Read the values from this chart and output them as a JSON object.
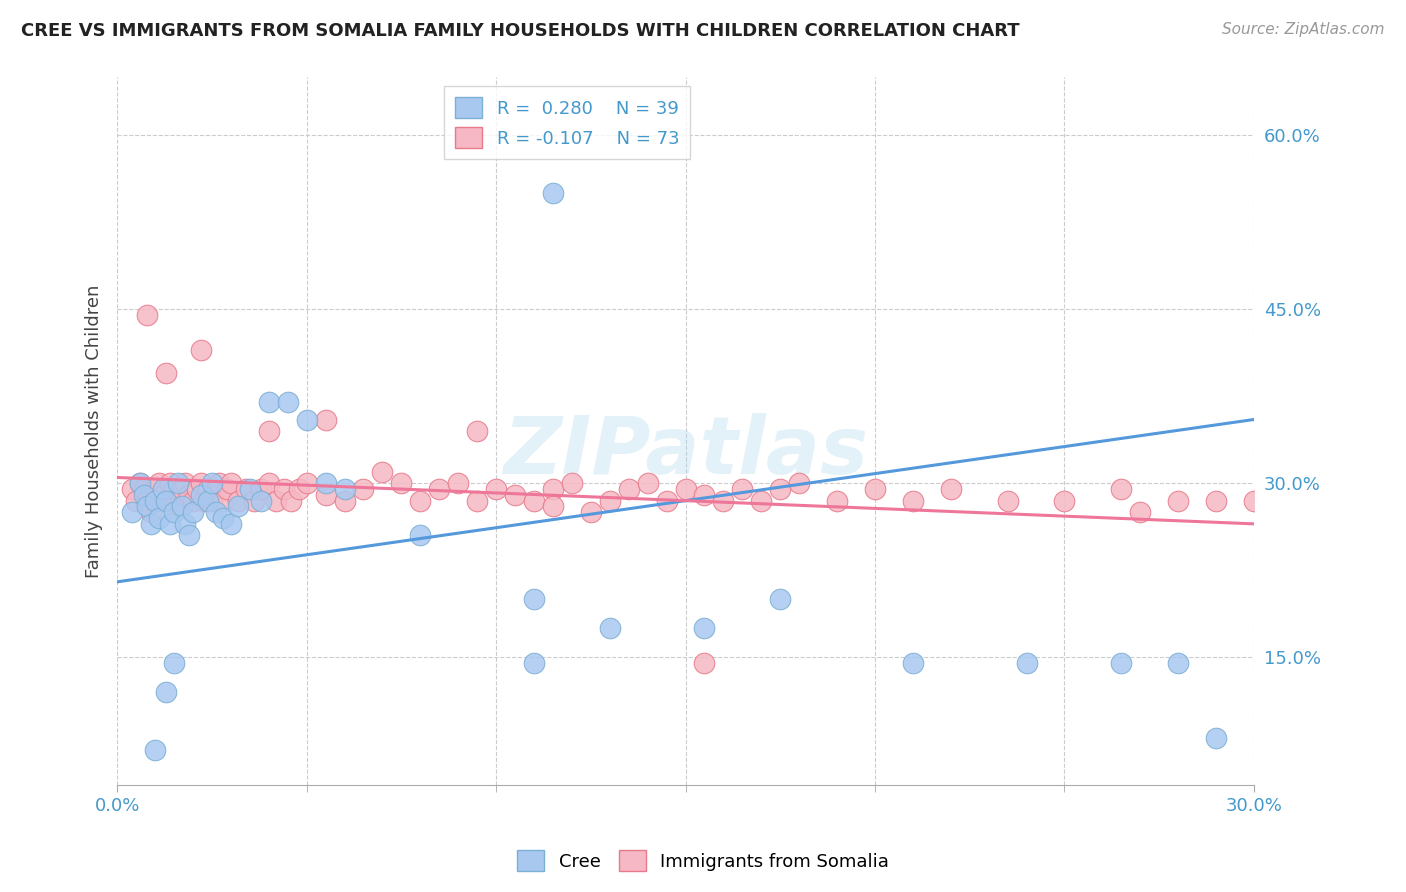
{
  "title": "CREE VS IMMIGRANTS FROM SOMALIA FAMILY HOUSEHOLDS WITH CHILDREN CORRELATION CHART",
  "source": "Source: ZipAtlas.com",
  "ylabel_label": "Family Households with Children",
  "x_min": 0.0,
  "x_max": 0.3,
  "y_min": 0.04,
  "y_max": 0.65,
  "y_ticks": [
    0.15,
    0.3,
    0.45,
    0.6
  ],
  "y_tick_labels": [
    "15.0%",
    "30.0%",
    "45.0%",
    "60.0%"
  ],
  "cree_color": "#a8c8f0",
  "cree_edge_color": "#7bafd4",
  "somalia_color": "#f5b8c4",
  "somalia_edge_color": "#e87a8a",
  "cree_line_color": "#5599dd",
  "somalia_line_color": "#ee7799",
  "legend_r1": "R =  0.280",
  "legend_n1": "N = 39",
  "legend_r2": "R = -0.107",
  "legend_n2": "N = 73",
  "watermark": "ZIPatlas",
  "cree_x": [
    0.004,
    0.006,
    0.007,
    0.008,
    0.009,
    0.01,
    0.011,
    0.012,
    0.013,
    0.014,
    0.015,
    0.016,
    0.017,
    0.018,
    0.019,
    0.02,
    0.022,
    0.024,
    0.025,
    0.026,
    0.028,
    0.03,
    0.032,
    0.035,
    0.038,
    0.04,
    0.045,
    0.05,
    0.055,
    0.06,
    0.08,
    0.11,
    0.13,
    0.155,
    0.175,
    0.21,
    0.24,
    0.265,
    0.29
  ],
  "cree_y": [
    0.275,
    0.3,
    0.29,
    0.28,
    0.265,
    0.285,
    0.27,
    0.295,
    0.285,
    0.265,
    0.275,
    0.3,
    0.28,
    0.265,
    0.255,
    0.275,
    0.29,
    0.285,
    0.3,
    0.275,
    0.27,
    0.265,
    0.28,
    0.295,
    0.285,
    0.37,
    0.37,
    0.355,
    0.3,
    0.295,
    0.255,
    0.2,
    0.175,
    0.175,
    0.2,
    0.145,
    0.145,
    0.145,
    0.08
  ],
  "somalia_x": [
    0.004,
    0.005,
    0.006,
    0.007,
    0.008,
    0.009,
    0.01,
    0.011,
    0.012,
    0.013,
    0.014,
    0.015,
    0.016,
    0.017,
    0.018,
    0.019,
    0.02,
    0.021,
    0.022,
    0.023,
    0.024,
    0.025,
    0.026,
    0.027,
    0.028,
    0.029,
    0.03,
    0.032,
    0.034,
    0.036,
    0.038,
    0.04,
    0.042,
    0.044,
    0.046,
    0.048,
    0.05,
    0.055,
    0.06,
    0.065,
    0.07,
    0.075,
    0.08,
    0.085,
    0.09,
    0.095,
    0.1,
    0.105,
    0.11,
    0.115,
    0.12,
    0.13,
    0.135,
    0.14,
    0.145,
    0.15,
    0.155,
    0.16,
    0.165,
    0.17,
    0.175,
    0.18,
    0.19,
    0.2,
    0.21,
    0.22,
    0.235,
    0.25,
    0.265,
    0.28,
    0.29,
    0.3,
    0.31
  ],
  "somalia_y": [
    0.295,
    0.285,
    0.3,
    0.295,
    0.285,
    0.275,
    0.295,
    0.3,
    0.29,
    0.285,
    0.3,
    0.295,
    0.28,
    0.295,
    0.3,
    0.29,
    0.285,
    0.295,
    0.3,
    0.285,
    0.295,
    0.285,
    0.295,
    0.3,
    0.285,
    0.295,
    0.3,
    0.285,
    0.295,
    0.285,
    0.295,
    0.3,
    0.285,
    0.295,
    0.285,
    0.295,
    0.3,
    0.29,
    0.285,
    0.295,
    0.31,
    0.3,
    0.285,
    0.295,
    0.3,
    0.285,
    0.295,
    0.29,
    0.285,
    0.295,
    0.3,
    0.285,
    0.295,
    0.3,
    0.285,
    0.295,
    0.29,
    0.285,
    0.295,
    0.285,
    0.295,
    0.3,
    0.285,
    0.295,
    0.285,
    0.295,
    0.285,
    0.285,
    0.295,
    0.285,
    0.285,
    0.285,
    0.275
  ],
  "somalia_outlier_x": [
    0.008,
    0.013,
    0.022,
    0.04,
    0.055,
    0.095,
    0.115,
    0.125,
    0.155,
    0.27
  ],
  "somalia_outlier_y": [
    0.445,
    0.395,
    0.415,
    0.345,
    0.355,
    0.345,
    0.28,
    0.275,
    0.145,
    0.275
  ],
  "cree_outlier_x": [
    0.01,
    0.013,
    0.015,
    0.11,
    0.115,
    0.28
  ],
  "cree_outlier_y": [
    0.07,
    0.12,
    0.145,
    0.145,
    0.55,
    0.145
  ],
  "cree_trendline": [
    0.215,
    0.355
  ],
  "somalia_trendline": [
    0.305,
    0.265
  ]
}
